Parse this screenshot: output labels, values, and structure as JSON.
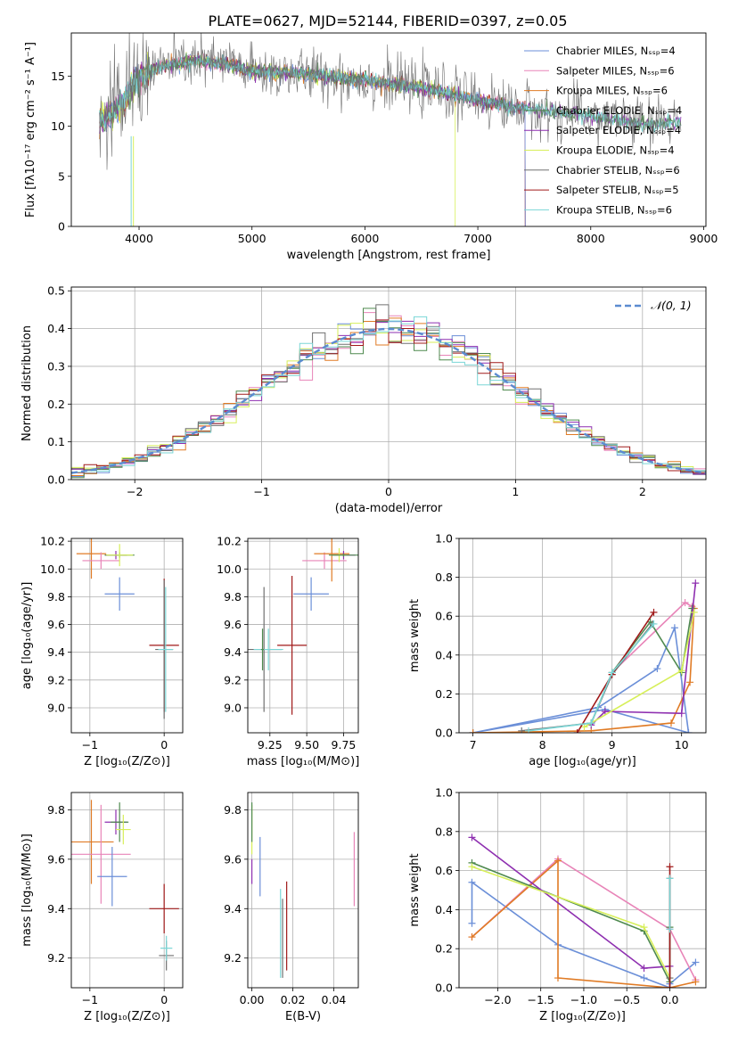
{
  "figure_title": "PLATE=0627, MJD=52144, FIBERID=0397, z=0.05",
  "colors": {
    "Chabrier MILES": "#6b8fd8",
    "Salpeter MILES": "#e884b8",
    "Kroupa MILES": "#e07b25",
    "Chabrier ELODIE": "#4f8a4f",
    "Salpeter ELODIE": "#8e2fb0",
    "Kroupa ELODIE": "#d7ef5a",
    "Chabrier STELIB": "#707070",
    "Salpeter STELIB": "#a01a1a",
    "Kroupa STELIB": "#7ad6d6",
    "normal": "#5b8bd0"
  },
  "chart_data": [
    {
      "id": "spectrum",
      "type": "line",
      "xlabel": "wavelength [Angstrom, rest frame]",
      "ylabel": "Flux [fλ10⁻¹⁷ erg cm⁻² s⁻¹ A⁻¹]",
      "xlim": [
        3400,
        9020
      ],
      "ylim": [
        0,
        19.3
      ],
      "xticks": [
        4000,
        5000,
        6000,
        7000,
        8000,
        9000
      ],
      "yticks": [
        0,
        5,
        10,
        15
      ],
      "grid": false,
      "legend_position": "top-right",
      "legend": [
        "Chabrier MILES, Nₛₛₚ=4",
        "Salpeter MILES, Nₛₛₚ=6",
        "Kroupa MILES, Nₛₛₚ=6",
        "Chabrier ELODIE, Nₛₛₚ=4",
        "Salpeter ELODIE, Nₛₛₚ=4",
        "Kroupa ELODIE, Nₛₛₚ=4",
        "Chabrier STELIB, Nₛₛₚ=6",
        "Salpeter STELIB, Nₛₛₚ=5",
        "Kroupa STELIB, Nₛₛₚ=6"
      ],
      "continuum": [
        [
          3650,
          10.5
        ],
        [
          3800,
          11.5
        ],
        [
          4000,
          15.0
        ],
        [
          4200,
          16.0
        ],
        [
          4500,
          16.5
        ],
        [
          4800,
          16.2
        ],
        [
          5000,
          15.5
        ],
        [
          5500,
          15.2
        ],
        [
          6000,
          14.6
        ],
        [
          6500,
          13.8
        ],
        [
          7000,
          12.6
        ],
        [
          7500,
          11.6
        ],
        [
          8000,
          11.0
        ],
        [
          8500,
          10.2
        ],
        [
          8800,
          10.5
        ]
      ],
      "cutoffs": [
        {
          "series": "Kroupa ELODIE",
          "end": 6800
        },
        {
          "series": "Kroupa MILES",
          "end": 7420
        },
        {
          "series": "Salpeter MILES",
          "end": 7420
        },
        {
          "series": "Chabrier MILES",
          "end": 7420
        },
        {
          "series": "Salpeter STELIB",
          "end": 7420
        }
      ]
    },
    {
      "id": "residual_histogram",
      "type": "bar",
      "xlabel": "(data-model)/error",
      "ylabel": "Normed distribution",
      "xlim": [
        -2.5,
        2.5
      ],
      "ylim": [
        0,
        0.51
      ],
      "xticks": [
        -2,
        -1,
        0,
        1,
        2
      ],
      "yticks": [
        0.0,
        0.1,
        0.2,
        0.3,
        0.4,
        0.5
      ],
      "grid": true,
      "legend": [
        "𝒩(0, 1)"
      ],
      "legend_position": "top-right",
      "bin_width": 0.1,
      "normal_mean": 0,
      "normal_sigma": 1
    },
    {
      "id": "age_vs_Z",
      "type": "scatter",
      "xlabel": "Z [log₁₀(Z/Z⊙)]",
      "ylabel": "age  [log₁₀(age/yr)]",
      "xlim": [
        -1.25,
        0.25
      ],
      "ylim": [
        8.82,
        10.22
      ],
      "xticks": [
        -1,
        0
      ],
      "yticks": [
        9.0,
        9.2,
        9.4,
        9.6,
        9.8,
        10.0,
        10.2
      ],
      "grid": true,
      "errorbars": [
        {
          "series": "Kroupa MILES",
          "x": -0.98,
          "y": 10.11,
          "xerr": 0.2,
          "yerr": 0.18
        },
        {
          "series": "Salpeter MILES",
          "x": -0.85,
          "y": 10.06,
          "xerr": 0.25,
          "yerr": 0.06
        },
        {
          "series": "Salpeter ELODIE",
          "x": -0.65,
          "y": 10.1,
          "xerr": 0.15,
          "yerr": 0.03
        },
        {
          "series": "Chabrier ELODIE",
          "x": -0.6,
          "y": 10.1,
          "xerr": 0.2,
          "yerr": 0.02
        },
        {
          "series": "Kroupa ELODIE",
          "x": -0.6,
          "y": 10.1,
          "xerr": 0.18,
          "yerr": 0.08
        },
        {
          "series": "Chabrier MILES",
          "x": -0.6,
          "y": 9.82,
          "xerr": 0.2,
          "yerr": 0.12
        },
        {
          "series": "Salpeter STELIB",
          "x": 0.0,
          "y": 9.45,
          "xerr": 0.2,
          "yerr": 0.48
        },
        {
          "series": "Chabrier STELIB",
          "x": 0.0,
          "y": 9.42,
          "xerr": 0.12,
          "yerr": 0.5
        },
        {
          "series": "Kroupa STELIB",
          "x": 0.02,
          "y": 9.42,
          "xerr": 0.1,
          "yerr": 0.45
        }
      ]
    },
    {
      "id": "age_vs_mass",
      "type": "scatter",
      "xlabel": "mass [log₁₀(M/M⊙)]",
      "ylabel": "",
      "xlim": [
        9.1,
        9.85
      ],
      "ylim": [
        8.82,
        10.22
      ],
      "xticks": [
        9.25,
        9.5,
        9.75
      ],
      "xtick_labels": [
        "9.25",
        "9.50",
        "9.75"
      ],
      "yticks": [
        9.0,
        9.2,
        9.4,
        9.6,
        9.8,
        10.0,
        10.2
      ],
      "grid": true,
      "errorbars": [
        {
          "series": "Chabrier STELIB",
          "x": 9.21,
          "y": 9.42,
          "xerr": 0.12,
          "yerr": 0.45
        },
        {
          "series": "Kroupa STELIB",
          "x": 9.24,
          "y": 9.42,
          "xerr": 0.1,
          "yerr": 0.15
        },
        {
          "series": "Chabrier ELODIE",
          "x": 9.2,
          "y": 9.42,
          "xerr": 0.01,
          "yerr": 0.15
        },
        {
          "series": "Salpeter STELIB",
          "x": 9.4,
          "y": 9.45,
          "xerr": 0.1,
          "yerr": 0.5
        },
        {
          "series": "Chabrier MILES",
          "x": 9.53,
          "y": 9.82,
          "xerr": 0.12,
          "yerr": 0.12
        },
        {
          "series": "Salpeter MILES",
          "x": 9.62,
          "y": 10.06,
          "xerr": 0.15,
          "yerr": 0.06
        },
        {
          "series": "Kroupa MILES",
          "x": 9.67,
          "y": 10.11,
          "xerr": 0.12,
          "yerr": 0.2
        },
        {
          "series": "Salpeter ELODIE",
          "x": 9.75,
          "y": 10.1,
          "xerr": 0.08,
          "yerr": 0.03
        },
        {
          "series": "Kroupa ELODIE",
          "x": 9.72,
          "y": 10.1,
          "xerr": 0.05,
          "yerr": 0.05
        },
        {
          "series": "Chabrier ELODIE",
          "x": 9.75,
          "y": 10.1,
          "xerr": 0.1,
          "yerr": 0.01
        }
      ]
    },
    {
      "id": "massweight_vs_age",
      "type": "line",
      "xlabel": "age  [log₁₀(age/yr)]",
      "ylabel": "mass weight",
      "xlim": [
        6.8,
        10.35
      ],
      "ylim": [
        0,
        1.0
      ],
      "xticks": [
        7,
        8,
        9,
        10
      ],
      "yticks": [
        0.0,
        0.2,
        0.4,
        0.6,
        0.8,
        1.0
      ],
      "grid": true,
      "series": [
        {
          "name": "Chabrier MILES",
          "points": [
            [
              7.0,
              0.0
            ],
            [
              8.8,
              0.13
            ],
            [
              9.65,
              0.33
            ],
            [
              9.9,
              0.54
            ],
            [
              10.1,
              0.0
            ],
            [
              8.9,
              0.12
            ],
            [
              7.0,
              0.0
            ]
          ]
        },
        {
          "name": "Salpeter MILES",
          "points": [
            [
              9.0,
              0.31
            ],
            [
              10.05,
              0.67
            ],
            [
              10.15,
              0.65
            ]
          ]
        },
        {
          "name": "Kroupa MILES",
          "points": [
            [
              7.0,
              0.0
            ],
            [
              8.7,
              0.01
            ],
            [
              9.85,
              0.05
            ],
            [
              10.12,
              0.26
            ],
            [
              10.18,
              0.64
            ]
          ]
        },
        {
          "name": "Chabrier ELODIE",
          "points": [
            [
              8.7,
              0.05
            ],
            [
              9.0,
              0.31
            ],
            [
              9.55,
              0.57
            ],
            [
              10.0,
              0.31
            ],
            [
              10.15,
              0.64
            ]
          ]
        },
        {
          "name": "Salpeter ELODIE",
          "points": [
            [
              8.7,
              0.04
            ],
            [
              8.9,
              0.11
            ],
            [
              10.0,
              0.1
            ],
            [
              10.2,
              0.77
            ]
          ]
        },
        {
          "name": "Kroupa ELODIE",
          "points": [
            [
              8.6,
              0.03
            ],
            [
              10.0,
              0.32
            ],
            [
              10.18,
              0.62
            ]
          ]
        },
        {
          "name": "Chabrier STELIB",
          "points": [
            [
              7.7,
              0.01
            ],
            [
              8.7,
              0.05
            ],
            [
              9.0,
              0.3
            ],
            [
              9.58,
              0.56
            ]
          ]
        },
        {
          "name": "Salpeter STELIB",
          "points": [
            [
              8.5,
              0.0
            ],
            [
              9.0,
              0.3
            ],
            [
              9.6,
              0.62
            ]
          ]
        },
        {
          "name": "Kroupa STELIB",
          "points": [
            [
              7.8,
              0.01
            ],
            [
              8.7,
              0.05
            ],
            [
              9.0,
              0.31
            ],
            [
              9.6,
              0.56
            ]
          ]
        }
      ]
    },
    {
      "id": "mass_vs_Z",
      "type": "scatter",
      "xlabel": "Z [log₁₀(Z/Z⊙)]",
      "ylabel": "mass [log₁₀(M/M⊙)]",
      "xlim": [
        -1.25,
        0.25
      ],
      "ylim": [
        9.08,
        9.87
      ],
      "xticks": [
        -1,
        0
      ],
      "yticks": [
        9.2,
        9.4,
        9.6,
        9.8
      ],
      "grid": true,
      "errorbars": [
        {
          "series": "Kroupa MILES",
          "x": -0.98,
          "y": 9.67,
          "xerr": 0.3,
          "yerr": 0.17
        },
        {
          "series": "Salpeter MILES",
          "x": -0.85,
          "y": 9.62,
          "xerr": 0.4,
          "yerr": 0.2
        },
        {
          "series": "Salpeter ELODIE",
          "x": -0.65,
          "y": 9.75,
          "xerr": 0.15,
          "yerr": 0.05
        },
        {
          "series": "Chabrier ELODIE",
          "x": -0.6,
          "y": 9.75,
          "xerr": 0.12,
          "yerr": 0.08
        },
        {
          "series": "Kroupa ELODIE",
          "x": -0.55,
          "y": 9.72,
          "xerr": 0.1,
          "yerr": 0.06
        },
        {
          "series": "Chabrier MILES",
          "x": -0.7,
          "y": 9.53,
          "xerr": 0.2,
          "yerr": 0.12
        },
        {
          "series": "Salpeter STELIB",
          "x": 0.0,
          "y": 9.4,
          "xerr": 0.2,
          "yerr": 0.1
        },
        {
          "series": "Chabrier STELIB",
          "x": 0.03,
          "y": 9.21,
          "xerr": 0.1,
          "yerr": 0.06
        },
        {
          "series": "Kroupa STELIB",
          "x": 0.03,
          "y": 9.24,
          "xerr": 0.08,
          "yerr": 0.05
        }
      ]
    },
    {
      "id": "mass_vs_EBV",
      "type": "scatter",
      "xlabel": "E(B-V)",
      "ylabel": "",
      "xlim": [
        -0.002,
        0.052
      ],
      "ylim": [
        9.08,
        9.87
      ],
      "xticks": [
        0.0,
        0.02,
        0.04
      ],
      "xtick_labels": [
        "0.00",
        "0.02",
        "0.04"
      ],
      "yticks": [
        9.2,
        9.4,
        9.6,
        9.8
      ],
      "grid": true,
      "errorbars": [
        {
          "series": "Kroupa ELODIE",
          "x": 0.0,
          "y": 9.72,
          "xerr": 0.0,
          "yerr": 0.1
        },
        {
          "series": "Chabrier ELODIE",
          "x": 0.0,
          "y": 9.75,
          "xerr": 0.0,
          "yerr": 0.08
        },
        {
          "series": "Salpeter ELODIE",
          "x": 0.0,
          "y": 9.55,
          "xerr": 0.0,
          "yerr": 0.05
        },
        {
          "series": "Chabrier MILES",
          "x": 0.004,
          "y": 9.57,
          "xerr": 0.0,
          "yerr": 0.12
        },
        {
          "series": "Kroupa STELIB",
          "x": 0.014,
          "y": 9.3,
          "xerr": 0.0,
          "yerr": 0.18
        },
        {
          "series": "Chabrier STELIB",
          "x": 0.015,
          "y": 9.28,
          "xerr": 0.0,
          "yerr": 0.16
        },
        {
          "series": "Salpeter STELIB",
          "x": 0.017,
          "y": 9.33,
          "xerr": 0.0,
          "yerr": 0.18
        },
        {
          "series": "Salpeter MILES",
          "x": 0.05,
          "y": 9.56,
          "xerr": 0.0,
          "yerr": 0.15
        }
      ]
    },
    {
      "id": "massweight_vs_Z",
      "type": "line",
      "xlabel": "Z [log₁₀(Z/Z⊙)]",
      "ylabel": "mass weight",
      "xlim": [
        -2.45,
        0.42
      ],
      "ylim": [
        0,
        1.0
      ],
      "xticks": [
        -2.0,
        -1.5,
        -1.0,
        -0.5,
        0.0
      ],
      "xtick_labels": [
        "−2.0",
        "−1.5",
        "−1.0",
        "−0.5",
        "0.0"
      ],
      "yticks": [
        0.0,
        0.2,
        0.4,
        0.6,
        0.8,
        1.0
      ],
      "grid": true,
      "series": [
        {
          "name": "Chabrier MILES",
          "points": [
            [
              -2.3,
              0.33
            ],
            [
              -2.3,
              0.54
            ],
            [
              -1.3,
              0.22
            ],
            [
              -0.3,
              0.05
            ],
            [
              0.0,
              0.0
            ],
            [
              0.0,
              0.02
            ],
            [
              0.3,
              0.13
            ]
          ]
        },
        {
          "name": "Salpeter MILES",
          "points": [
            [
              -2.3,
              0.26
            ],
            [
              -1.3,
              0.66
            ],
            [
              0.0,
              0.3
            ],
            [
              0.3,
              0.04
            ]
          ]
        },
        {
          "name": "Kroupa MILES",
          "points": [
            [
              -2.3,
              0.26
            ],
            [
              -1.3,
              0.65
            ],
            [
              -1.3,
              0.05
            ],
            [
              0.0,
              0.0
            ],
            [
              0.3,
              0.03
            ]
          ]
        },
        {
          "name": "Chabrier ELODIE",
          "points": [
            [
              -2.3,
              0.64
            ],
            [
              -0.3,
              0.29
            ],
            [
              0.0,
              0.03
            ],
            [
              0.0,
              0.31
            ]
          ]
        },
        {
          "name": "Salpeter ELODIE",
          "points": [
            [
              -2.3,
              0.77
            ],
            [
              -0.3,
              0.1
            ],
            [
              0.0,
              0.11
            ]
          ]
        },
        {
          "name": "Kroupa ELODIE",
          "points": [
            [
              -2.3,
              0.62
            ],
            [
              -0.3,
              0.31
            ],
            [
              0.0,
              0.05
            ]
          ]
        },
        {
          "name": "Chabrier STELIB",
          "points": [
            [
              0.0,
              0.05
            ],
            [
              0.0,
              0.56
            ]
          ]
        },
        {
          "name": "Salpeter STELIB",
          "points": [
            [
              0.0,
              0.0
            ],
            [
              0.0,
              0.62
            ]
          ]
        },
        {
          "name": "Kroupa STELIB",
          "points": [
            [
              0.0,
              0.3
            ],
            [
              0.0,
              0.56
            ]
          ]
        }
      ]
    }
  ]
}
